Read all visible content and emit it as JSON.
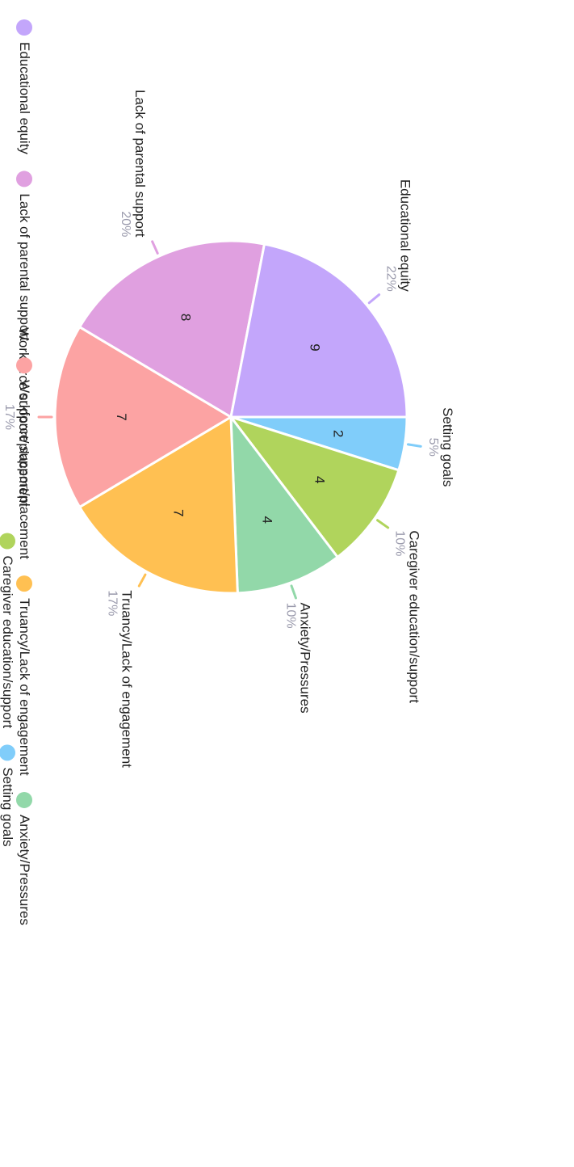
{
  "chart_data": {
    "type": "pie",
    "series": [
      {
        "name": "",
        "slices": [
          {
            "label": "Setting goals",
            "value": 2,
            "percent": "5%",
            "color": "#80cdfa"
          },
          {
            "label": "Caregiver education/support",
            "value": 4,
            "percent": "10%",
            "color": "#b0d45c"
          },
          {
            "label": "Anxiety/Pressures",
            "value": 4,
            "percent": "10%",
            "color": "#92d8a9"
          },
          {
            "label": "Truancy/Lack of engagement",
            "value": 7,
            "percent": "17%",
            "color": "#ffc052"
          },
          {
            "label": "Workforce support/placement",
            "value": 7,
            "percent": "17%",
            "color": "#fca3a3"
          },
          {
            "label": "Lack of parental support",
            "value": 8,
            "percent": "20%",
            "color": "#e0a0e0"
          },
          {
            "label": "Educational equity",
            "value": 9,
            "percent": "22%",
            "color": "#c3a6fb"
          }
        ]
      }
    ],
    "legend": {
      "position": "bottom",
      "items": [
        "Educational equity",
        "Lack of parental support",
        "Workforce support/placement",
        "Truancy/Lack of engagement",
        "Anxiety/Pressures",
        "Caregiver education/support",
        "Setting goals"
      ]
    },
    "orientation": "rotated-90-clockwise"
  },
  "colors": {
    "label_text": "#222222",
    "percent_text": "#9b9bad",
    "slice_border": "#ffffff"
  }
}
